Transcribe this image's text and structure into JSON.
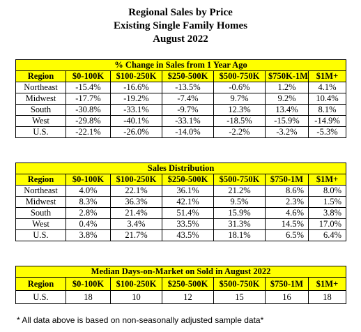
{
  "header": {
    "title": "Regional Sales by Price",
    "subtitle": "Existing Single Family Homes",
    "period": "August 2022"
  },
  "table1": {
    "title": "% Change in Sales from 1 Year Ago",
    "columns": [
      "Region",
      "$0-100K",
      "$100-250K",
      "$250-500K",
      "$500-750K",
      "$750K-1M",
      "$1M+"
    ],
    "rows": [
      [
        "Northeast",
        "-15.4%",
        "-16.6%",
        "-13.5%",
        "-0.6%",
        "1.2%",
        "4.1%"
      ],
      [
        "Midwest",
        "-17.7%",
        "-19.2%",
        "-7.4%",
        "9.7%",
        "9.2%",
        "10.4%"
      ],
      [
        "South",
        "-30.8%",
        "-33.1%",
        "-9.7%",
        "12.3%",
        "13.4%",
        "8.1%"
      ],
      [
        "West",
        "-29.8%",
        "-40.1%",
        "-33.1%",
        "-18.5%",
        "-15.9%",
        "-14.9%"
      ],
      [
        "U.S.",
        "-22.1%",
        "-26.0%",
        "-14.0%",
        "-2.2%",
        "-3.2%",
        "-5.3%"
      ]
    ]
  },
  "table2": {
    "title": "Sales Distribution",
    "columns": [
      "Region",
      "$0-100K",
      "$100-250K",
      "$250-500K",
      "$500-750K",
      "$750-1M",
      "$1M+"
    ],
    "rows": [
      [
        "Northeast",
        "4.0%",
        "22.1%",
        "36.1%",
        "21.2%",
        "8.6%",
        "8.0%"
      ],
      [
        "Midwest",
        "8.3%",
        "36.3%",
        "42.1%",
        "9.5%",
        "2.3%",
        "1.5%"
      ],
      [
        "South",
        "2.8%",
        "21.4%",
        "51.4%",
        "15.9%",
        "4.6%",
        "3.8%"
      ],
      [
        "West",
        "0.4%",
        "3.4%",
        "33.5%",
        "31.3%",
        "14.5%",
        "17.0%"
      ],
      [
        "U.S.",
        "3.8%",
        "21.7%",
        "43.5%",
        "18.1%",
        "6.5%",
        "6.4%"
      ]
    ]
  },
  "table3": {
    "title": "Median Days-on-Market on Sold in August 2022",
    "columns": [
      "Region",
      "$0-100K",
      "$100-250K",
      "$250-500K",
      "$500-750K",
      "$750-1M",
      "$1M+"
    ],
    "rows": [
      [
        "U.S.",
        "18",
        "10",
        "12",
        "15",
        "16",
        "18"
      ]
    ]
  },
  "footnote": "* All data above is based on non-seasonally adjusted sample data*",
  "colors": {
    "header_fill": "#ffff00",
    "border": "#000000"
  }
}
